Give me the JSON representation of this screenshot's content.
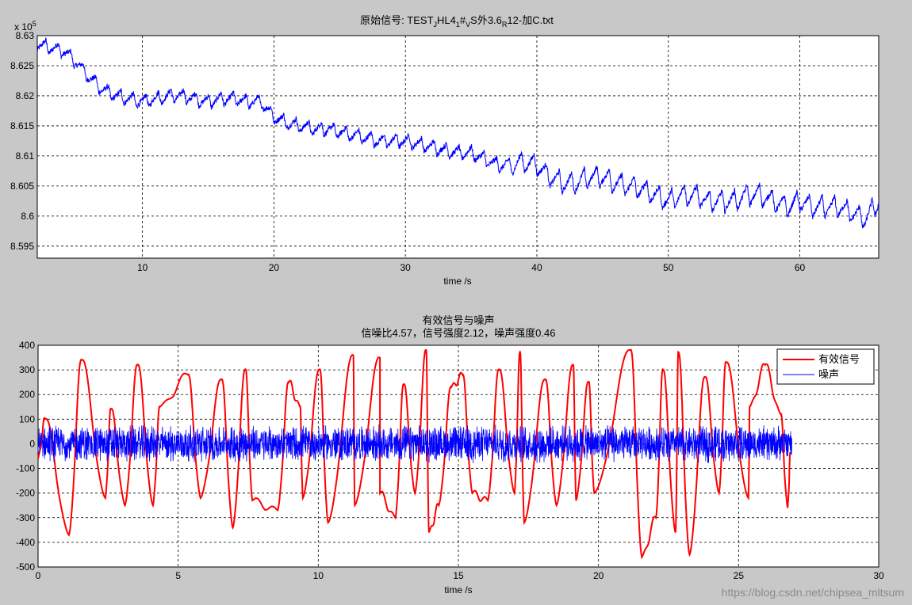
{
  "watermark": "https://blog.csdn.net/chipsea_mltsum",
  "colors": {
    "background": "#c8c8c8",
    "axes_bg": "#ffffff",
    "signal": "#ff0000",
    "noise": "#0000ff",
    "raw": "#0000ff"
  },
  "chart_data": [
    {
      "type": "line",
      "title": "原始信号: TEST_JHL4_1#_VS外3.6_R12-加C.txt",
      "title_parts": [
        "原始信号: TEST",
        "J",
        "HL4",
        "1",
        "#",
        "V",
        "S外3.6",
        "R",
        "12-加C.txt"
      ],
      "xlabel": "time /s",
      "ylabel": "",
      "exponent_label": "x 10",
      "exponent_power": "5",
      "xlim": [
        2,
        66
      ],
      "ylim": [
        8.593,
        8.63
      ],
      "xticks": [
        10,
        20,
        30,
        40,
        50,
        60
      ],
      "xtick_labels": [
        "10",
        "20",
        "30",
        "40",
        "50",
        "60"
      ],
      "yticks": [
        8.595,
        8.6,
        8.605,
        8.61,
        8.615,
        8.62,
        8.625,
        8.63
      ],
      "ytick_labels": [
        "8.595",
        "8.6",
        "8.605",
        "8.61",
        "8.615",
        "8.62",
        "8.625",
        "8.63"
      ],
      "grid": true,
      "series": [
        {
          "color": "#0000ff",
          "x": [
            2,
            3,
            4,
            5,
            6,
            7,
            8,
            9,
            10,
            11,
            12,
            13,
            14,
            15,
            16,
            17,
            18,
            19,
            20,
            21,
            22,
            23,
            24,
            25,
            26,
            27,
            28,
            29,
            30,
            31,
            32,
            33,
            34,
            35,
            36,
            37,
            38,
            39,
            40,
            41,
            42,
            43,
            44,
            45,
            46,
            47,
            48,
            49,
            50,
            51,
            52,
            53,
            54,
            55,
            56,
            57,
            58,
            59,
            60,
            61,
            62,
            63,
            64,
            65,
            66
          ],
          "y": [
            8.6285,
            8.628,
            8.6275,
            8.6255,
            8.623,
            8.621,
            8.62,
            8.6195,
            8.619,
            8.6195,
            8.62,
            8.62,
            8.6195,
            8.619,
            8.6195,
            8.6195,
            8.619,
            8.619,
            8.6165,
            8.6155,
            8.615,
            8.6145,
            8.6145,
            8.614,
            8.6135,
            8.613,
            8.6125,
            8.6125,
            8.6125,
            8.612,
            8.6115,
            8.611,
            8.6105,
            8.6105,
            8.6095,
            8.6085,
            8.6085,
            8.609,
            8.6085,
            8.6065,
            8.6055,
            8.6055,
            8.6065,
            8.6065,
            8.6055,
            8.605,
            8.6045,
            8.6035,
            8.6025,
            8.6035,
            8.6035,
            8.6025,
            8.6025,
            8.6025,
            8.6035,
            8.6035,
            8.6025,
            8.6015,
            8.6025,
            8.6015,
            8.6015,
            8.6015,
            8.6005,
            8.5995,
            8.6025
          ]
        }
      ]
    },
    {
      "type": "line",
      "title": "有效信号与噪声",
      "subtitle": "信噪比4.57，信号强度2.12，噪声强度0.46",
      "xlabel": "time /s",
      "ylabel": "",
      "xlim": [
        0,
        30
      ],
      "ylim": [
        -500,
        400
      ],
      "xticks": [
        0,
        5,
        10,
        15,
        20,
        25,
        30
      ],
      "xtick_labels": [
        "0",
        "5",
        "10",
        "15",
        "20",
        "25",
        "30"
      ],
      "yticks": [
        -500,
        -400,
        -300,
        -200,
        -100,
        0,
        100,
        200,
        300,
        400
      ],
      "ytick_labels": [
        "-500",
        "-400",
        "-300",
        "-200",
        "-100",
        "0",
        "100",
        "200",
        "300",
        "400"
      ],
      "grid": true,
      "legend_position": "top-right",
      "series": [
        {
          "name": "有效信号",
          "color": "#ff0000",
          "peaks": [
            [
              0.25,
              100
            ],
            [
              1.55,
              340
            ],
            [
              2.6,
              140
            ],
            [
              3.55,
              320
            ],
            [
              4.35,
              150
            ],
            [
              5.35,
              280
            ],
            [
              6.55,
              260
            ],
            [
              7.4,
              300
            ],
            [
              8.95,
              250
            ],
            [
              9.35,
              150
            ],
            [
              10.05,
              300
            ],
            [
              11.25,
              360
            ],
            [
              12.2,
              350
            ],
            [
              13.05,
              240
            ],
            [
              13.85,
              380
            ],
            [
              14.75,
              230
            ],
            [
              15.15,
              280
            ],
            [
              16.45,
              300
            ],
            [
              17.2,
              370
            ],
            [
              18.1,
              260
            ],
            [
              19.1,
              320
            ],
            [
              19.65,
              250
            ],
            [
              21.15,
              380
            ],
            [
              22.3,
              300
            ],
            [
              22.85,
              370
            ],
            [
              23.8,
              270
            ],
            [
              24.55,
              330
            ],
            [
              25.4,
              150
            ],
            [
              25.95,
              320
            ],
            [
              26.5,
              120
            ]
          ],
          "troughs": [
            [
              1.1,
              -370
            ],
            [
              2.4,
              -220
            ],
            [
              3.1,
              -250
            ],
            [
              4.1,
              -250
            ],
            [
              5.8,
              -220
            ],
            [
              6.95,
              -340
            ],
            [
              7.65,
              -230
            ],
            [
              8.55,
              -270
            ],
            [
              9.45,
              -220
            ],
            [
              10.35,
              -320
            ],
            [
              11.3,
              -250
            ],
            [
              12.2,
              -200
            ],
            [
              12.75,
              -300
            ],
            [
              13.45,
              -200
            ],
            [
              13.95,
              -360
            ],
            [
              14.3,
              -250
            ],
            [
              15.5,
              -200
            ],
            [
              16.05,
              -230
            ],
            [
              17.0,
              -200
            ],
            [
              17.35,
              -320
            ],
            [
              18.5,
              -250
            ],
            [
              19.2,
              -230
            ],
            [
              19.85,
              -200
            ],
            [
              21.55,
              -460
            ],
            [
              22.05,
              -300
            ],
            [
              22.75,
              -360
            ],
            [
              23.25,
              -450
            ],
            [
              24.3,
              -200
            ],
            [
              25.35,
              -220
            ],
            [
              26.75,
              -260
            ]
          ]
        },
        {
          "name": "噪声",
          "color": "#0000ff",
          "x_range": [
            0,
            26.9
          ],
          "amplitude": 80,
          "description_values": {
            "min": -100,
            "max": 100
          }
        }
      ]
    }
  ]
}
